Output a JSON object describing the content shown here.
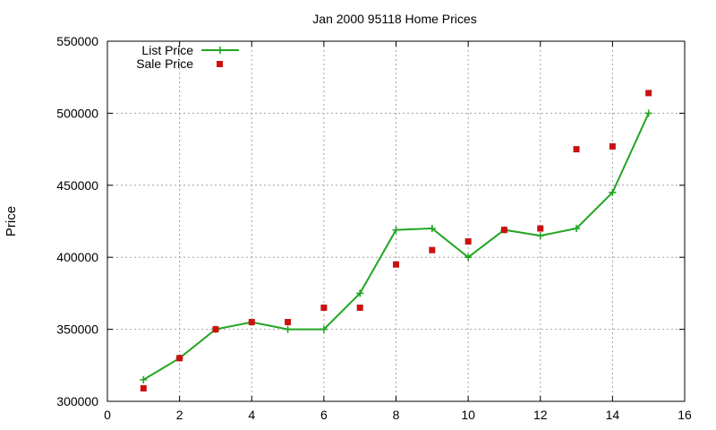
{
  "chart_data": {
    "type": "line",
    "title": "Jan 2000 95118 Home Prices",
    "xlabel": "",
    "ylabel": "Price",
    "xlim": [
      0,
      16
    ],
    "ylim": [
      300000,
      550000
    ],
    "xticks": [
      0,
      2,
      4,
      6,
      8,
      10,
      12,
      14,
      16
    ],
    "yticks": [
      300000,
      350000,
      400000,
      450000,
      500000,
      550000
    ],
    "grid": true,
    "legend_position": "top-left",
    "series": [
      {
        "name": "List Price",
        "style": "line-plus",
        "color": "#22a522",
        "points": [
          [
            1,
            315000
          ],
          [
            2,
            330000
          ],
          [
            3,
            350000
          ],
          [
            4,
            355000
          ],
          [
            5,
            350000
          ],
          [
            6,
            350000
          ],
          [
            7,
            375000
          ],
          [
            8,
            419000
          ],
          [
            9,
            420000
          ],
          [
            10,
            400000
          ],
          [
            11,
            419000
          ],
          [
            12,
            415000
          ],
          [
            13,
            420000
          ],
          [
            14,
            445000
          ],
          [
            15,
            500000
          ]
        ]
      },
      {
        "name": "Sale Price",
        "style": "square",
        "color": "#cc1111",
        "points": [
          [
            1,
            309000
          ],
          [
            2,
            330000
          ],
          [
            3,
            350000
          ],
          [
            4,
            355000
          ],
          [
            5,
            355000
          ],
          [
            6,
            365000
          ],
          [
            7,
            365000
          ],
          [
            8,
            395000
          ],
          [
            9,
            405000
          ],
          [
            10,
            411000
          ],
          [
            11,
            419000
          ],
          [
            12,
            420000
          ],
          [
            13,
            475000
          ],
          [
            14,
            477000
          ],
          [
            15,
            514000
          ]
        ]
      }
    ]
  }
}
